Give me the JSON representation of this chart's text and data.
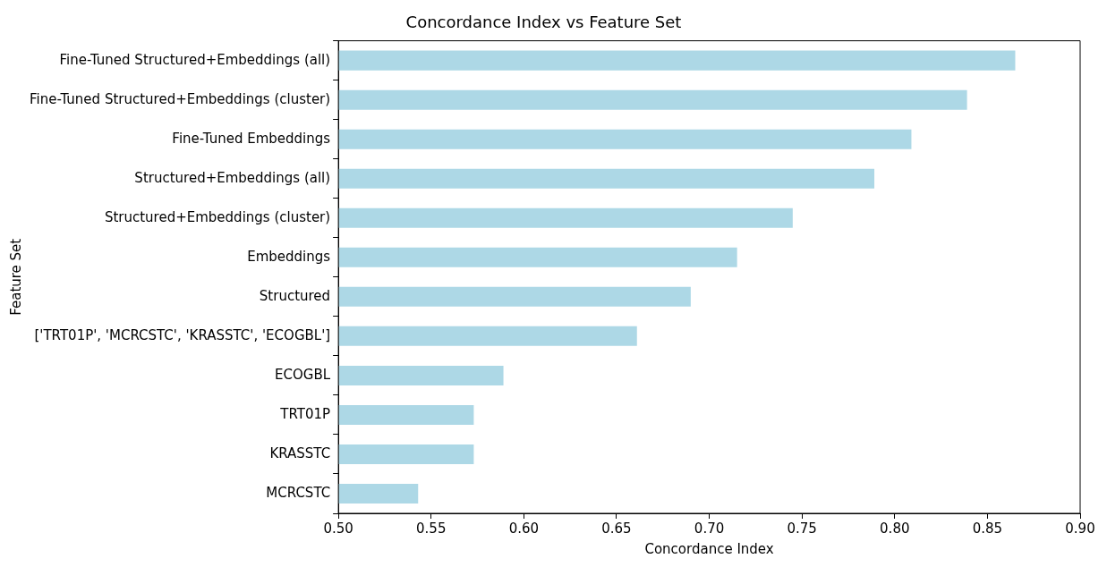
{
  "chart_data": {
    "type": "bar",
    "orientation": "horizontal",
    "title": "Concordance Index vs Feature Set",
    "xlabel": "Concordance Index",
    "ylabel": "Feature Set",
    "categories": [
      "Fine-Tuned Structured+Embeddings (all)",
      "Fine-Tuned Structured+Embeddings (cluster)",
      "Fine-Tuned Embeddings",
      "Structured+Embeddings (all)",
      "Structured+Embeddings (cluster)",
      "Embeddings",
      "Structured",
      "['TRT01P', 'MCRCSTC', 'KRASSTC', 'ECOGBL']",
      "ECOGBL",
      "TRT01P",
      "KRASSTC",
      "MCRCSTC"
    ],
    "values": [
      0.865,
      0.839,
      0.809,
      0.789,
      0.745,
      0.715,
      0.69,
      0.661,
      0.589,
      0.573,
      0.573,
      0.543
    ],
    "color": "#add8e6",
    "xlim": [
      0.5,
      0.9
    ],
    "xticks": [
      {
        "value": 0.5,
        "label": "0.50"
      },
      {
        "value": 0.55,
        "label": "0.55"
      },
      {
        "value": 0.6,
        "label": "0.60"
      },
      {
        "value": 0.65,
        "label": "0.65"
      },
      {
        "value": 0.7,
        "label": "0.70"
      },
      {
        "value": 0.75,
        "label": "0.75"
      },
      {
        "value": 0.8,
        "label": "0.80"
      },
      {
        "value": 0.85,
        "label": "0.85"
      },
      {
        "value": 0.9,
        "label": "0.90"
      }
    ],
    "grid": false,
    "legend": false
  }
}
